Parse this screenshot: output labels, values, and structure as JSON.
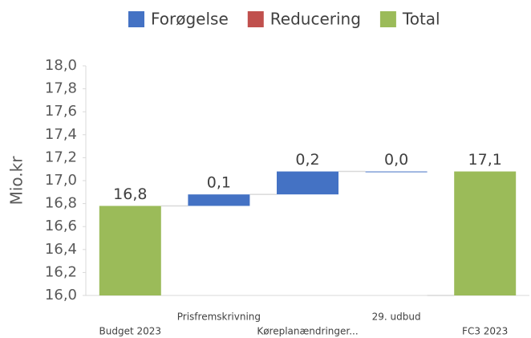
{
  "chart_data": {
    "type": "waterfall",
    "categories": [
      "Budget 2023",
      "Prisfremskrivning",
      "Køreplanændringer...",
      "29. udbud",
      "FC3 2023"
    ],
    "series": [
      {
        "name": "Forøgelse",
        "color": "#4472c4",
        "values": [
          null,
          0.1,
          0.2,
          0.0,
          null
        ],
        "value_labels": [
          null,
          "0,1",
          "0,2",
          "0,0",
          null
        ]
      },
      {
        "name": "Reducering",
        "color": "#c0504d",
        "values": [
          null,
          null,
          null,
          null,
          null
        ]
      },
      {
        "name": "Total",
        "color": "#9bbb59",
        "values": [
          16.78,
          null,
          null,
          null,
          17.08
        ],
        "value_labels": [
          "16,8",
          null,
          null,
          null,
          "17,1"
        ]
      }
    ],
    "ylabel": "Mio.kr",
    "ylim": [
      16.0,
      18.0
    ],
    "yticks": [
      {
        "value": 16.0,
        "label": "16,0"
      },
      {
        "value": 16.2,
        "label": "16,2"
      },
      {
        "value": 16.4,
        "label": "16,4"
      },
      {
        "value": 16.6,
        "label": "16,6"
      },
      {
        "value": 16.8,
        "label": "16,8"
      },
      {
        "value": 17.0,
        "label": "17,0"
      },
      {
        "value": 17.2,
        "label": "17,2"
      },
      {
        "value": 17.4,
        "label": "17,4"
      },
      {
        "value": 17.6,
        "label": "17,6"
      },
      {
        "value": 17.8,
        "label": "17,8"
      },
      {
        "value": 18.0,
        "label": "18,0"
      }
    ],
    "grid": false,
    "legend": "top"
  }
}
